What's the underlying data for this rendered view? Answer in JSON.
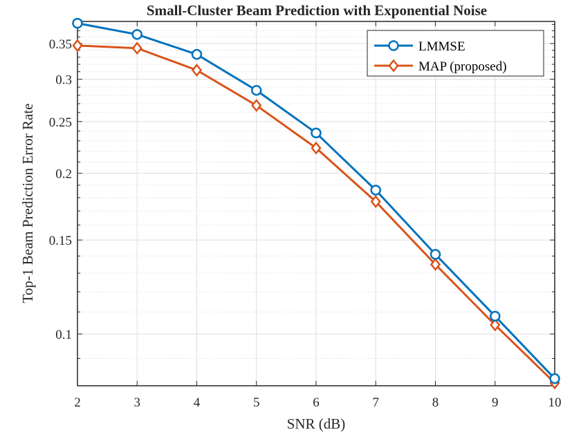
{
  "chart_data": {
    "type": "line",
    "title": "Small-Cluster Beam Prediction with Exponential Noise",
    "xlabel": "SNR (dB)",
    "ylabel": "Top-1 Beam Prediction Error Rate",
    "x": [
      2,
      3,
      4,
      5,
      6,
      7,
      8,
      9,
      10
    ],
    "xlim": [
      2,
      10
    ],
    "ylim": [
      0.08,
      0.385
    ],
    "yscale": "log",
    "xticks": [
      "2",
      "3",
      "4",
      "5",
      "6",
      "7",
      "8",
      "9",
      "10"
    ],
    "yticks": [
      {
        "value": 0.1,
        "label": "0.1"
      },
      {
        "value": 0.15,
        "label": "0.15"
      },
      {
        "value": 0.2,
        "label": "0.2"
      },
      {
        "value": 0.25,
        "label": "0.25"
      },
      {
        "value": 0.3,
        "label": "0.3"
      },
      {
        "value": 0.35,
        "label": "0.35"
      }
    ],
    "yminor": [
      0.08,
      0.09,
      0.11,
      0.12,
      0.13,
      0.14,
      0.16,
      0.17,
      0.18,
      0.19,
      0.21,
      0.22,
      0.23,
      0.24,
      0.26,
      0.27,
      0.28,
      0.29,
      0.31,
      0.32,
      0.33,
      0.34,
      0.36,
      0.37,
      0.38
    ],
    "grid": true,
    "legend_position": "top-right",
    "series": [
      {
        "name": "LMMSE",
        "color": "#0072BD",
        "marker": "circle",
        "values": [
          0.382,
          0.364,
          0.334,
          0.286,
          0.238,
          0.186,
          0.141,
          0.108,
          0.0825
        ]
      },
      {
        "name": "MAP (proposed)",
        "color": "#D95319",
        "marker": "diamond",
        "values": [
          0.347,
          0.343,
          0.312,
          0.268,
          0.223,
          0.177,
          0.135,
          0.104,
          0.081
        ]
      }
    ]
  }
}
